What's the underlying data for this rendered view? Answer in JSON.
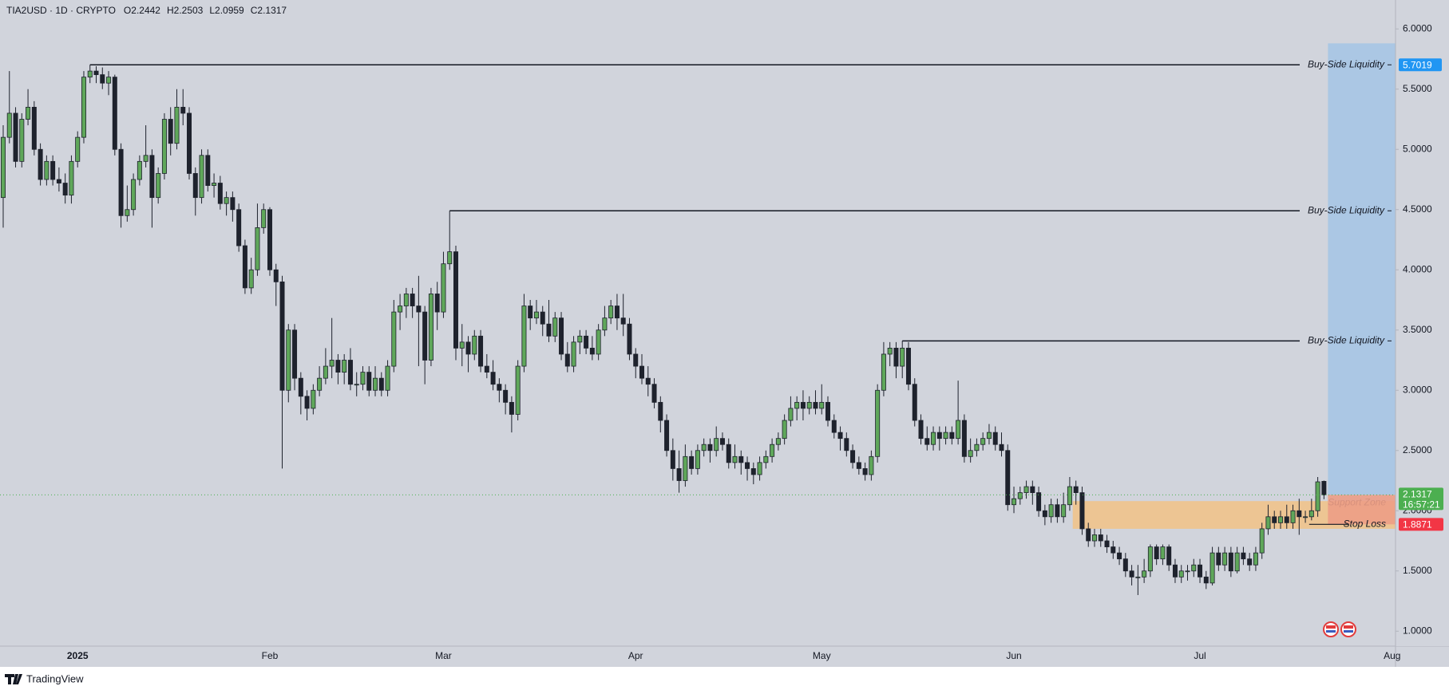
{
  "header": {
    "symbol": "TIA2USD · 1D · CRYPTO",
    "ohlc_prefixes": [
      "O",
      "H",
      "L",
      "C"
    ]
  },
  "chart_data": {
    "type": "candlestick",
    "categories": [
      null,
      null,
      null,
      null,
      null,
      null,
      null,
      null,
      null,
      null,
      null,
      null,
      "2025",
      null,
      null,
      null,
      null,
      null,
      null,
      null,
      null,
      null,
      null,
      null,
      null,
      null,
      null,
      null,
      null,
      null,
      null,
      null,
      null,
      null,
      null,
      null,
      null,
      null,
      null,
      null,
      null,
      null,
      null,
      "Feb",
      null,
      null,
      null,
      null,
      null,
      null,
      null,
      null,
      null,
      null,
      null,
      null,
      null,
      null,
      null,
      null,
      null,
      null,
      null,
      null,
      null,
      null,
      null,
      null,
      null,
      null,
      null,
      "Mar",
      null,
      null,
      null,
      null,
      null,
      null,
      null,
      null,
      null,
      null,
      null,
      null,
      null,
      null,
      null,
      null,
      null,
      null,
      null,
      null,
      null,
      null,
      null,
      null,
      null,
      null,
      null,
      null,
      null,
      null,
      "Apr",
      null,
      null,
      null,
      null,
      null,
      null,
      null,
      null,
      null,
      null,
      null,
      null,
      null,
      null,
      null,
      null,
      null,
      null,
      null,
      null,
      null,
      null,
      null,
      null,
      null,
      null,
      null,
      null,
      null,
      "May",
      null,
      null,
      null,
      null,
      null,
      null,
      null,
      null,
      null,
      null,
      null,
      null,
      null,
      null,
      null,
      null,
      null,
      null,
      null,
      null,
      null,
      null,
      null,
      null,
      null,
      null,
      null,
      null,
      null,
      null,
      "Jun",
      null,
      null,
      null,
      null,
      null,
      null,
      null,
      null,
      null,
      null,
      null,
      null,
      null,
      null,
      null,
      null,
      null,
      null,
      null,
      null,
      null,
      null,
      null,
      null,
      null,
      null,
      null,
      null,
      null,
      "Jul",
      null,
      null,
      null,
      null,
      null,
      null,
      null,
      null,
      null,
      null,
      null,
      null,
      null,
      null,
      null,
      null,
      null,
      null,
      null,
      null,
      null,
      null,
      null,
      null,
      null,
      null,
      null,
      null,
      null,
      null,
      "Aug"
    ],
    "open": [
      4.6,
      5.1,
      5.3,
      4.9,
      5.25,
      5.35,
      5.0,
      4.75,
      4.9,
      4.75,
      4.72,
      4.62,
      4.9,
      5.1,
      5.6,
      5.65,
      5.62,
      5.55,
      5.6,
      5.0,
      4.45,
      4.5,
      4.75,
      4.9,
      4.95,
      4.6,
      4.8,
      5.25,
      5.05,
      5.35,
      5.3,
      4.8,
      4.6,
      4.95,
      4.7,
      4.72,
      4.55,
      4.6,
      4.5,
      4.2,
      3.85,
      4.0,
      4.35,
      4.5,
      4.0,
      3.9,
      3.0,
      3.5,
      3.1,
      2.95,
      2.85,
      3.0,
      3.1,
      3.2,
      3.25,
      3.15,
      3.25,
      3.05,
      3.05,
      3.15,
      3.0,
      3.1,
      3.0,
      3.2,
      3.65,
      3.7,
      3.8,
      3.7,
      3.65,
      3.25,
      3.8,
      3.65,
      4.05,
      4.15,
      3.35,
      3.4,
      3.3,
      3.45,
      3.2,
      3.15,
      3.05,
      3.0,
      2.9,
      2.8,
      3.2,
      3.7,
      3.6,
      3.65,
      3.55,
      3.45,
      3.6,
      3.3,
      3.2,
      3.4,
      3.45,
      3.35,
      3.3,
      3.5,
      3.6,
      3.7,
      3.6,
      3.55,
      3.3,
      3.2,
      3.1,
      3.05,
      2.9,
      2.75,
      2.5,
      2.35,
      2.25,
      2.45,
      2.35,
      2.5,
      2.55,
      2.5,
      2.6,
      2.55,
      2.4,
      2.45,
      2.4,
      2.35,
      2.3,
      2.4,
      2.45,
      2.55,
      2.6,
      2.75,
      2.85,
      2.9,
      2.85,
      2.9,
      2.85,
      2.9,
      2.75,
      2.65,
      2.6,
      2.5,
      2.4,
      2.35,
      2.3,
      2.45,
      3.0,
      3.3,
      3.35,
      3.2,
      3.35,
      3.05,
      2.75,
      2.6,
      2.55,
      2.65,
      2.6,
      2.65,
      2.6,
      2.75,
      2.45,
      2.5,
      2.55,
      2.6,
      2.65,
      2.55,
      2.5,
      2.05,
      2.1,
      2.15,
      2.2,
      2.15,
      2.0,
      1.95,
      2.05,
      1.95,
      2.05,
      2.2,
      2.15,
      1.85,
      1.75,
      1.8,
      1.75,
      1.7,
      1.65,
      1.6,
      1.5,
      1.45,
      1.45,
      1.5,
      1.7,
      1.6,
      1.7,
      1.55,
      1.45,
      1.5,
      1.5,
      1.55,
      1.45,
      1.4,
      1.65,
      1.55,
      1.65,
      1.5,
      1.65,
      1.6,
      1.55,
      1.65,
      1.85,
      1.95,
      1.9,
      1.95,
      1.9,
      2.0,
      1.95,
      1.95,
      2.0,
      2.2442,
      null,
      null,
      null,
      null,
      null,
      null,
      null,
      null,
      null,
      null,
      null
    ],
    "high": [
      5.2,
      5.65,
      5.35,
      5.3,
      5.5,
      5.4,
      5.05,
      4.95,
      4.95,
      4.85,
      4.8,
      4.95,
      5.15,
      5.65,
      5.7019,
      5.69,
      5.68,
      5.65,
      5.62,
      5.05,
      4.7,
      4.8,
      4.95,
      5.2,
      5.0,
      4.85,
      5.3,
      5.35,
      5.5,
      5.5,
      5.35,
      4.85,
      5.0,
      5.0,
      4.8,
      4.78,
      4.65,
      4.65,
      4.55,
      4.25,
      4.1,
      4.55,
      4.55,
      4.52,
      4.05,
      3.95,
      3.55,
      3.55,
      3.15,
      3.0,
      3.05,
      3.2,
      3.35,
      3.6,
      3.3,
      3.3,
      3.35,
      3.15,
      3.2,
      3.2,
      3.2,
      3.15,
      3.25,
      3.75,
      3.8,
      3.85,
      3.85,
      3.95,
      3.7,
      3.85,
      3.9,
      4.15,
      4.49,
      4.2,
      3.55,
      3.45,
      3.5,
      3.5,
      3.3,
      3.25,
      3.1,
      3.05,
      2.95,
      3.25,
      3.8,
      3.75,
      3.75,
      3.7,
      3.75,
      3.65,
      3.65,
      3.4,
      3.45,
      3.5,
      3.5,
      3.45,
      3.55,
      3.7,
      3.75,
      3.8,
      3.8,
      3.6,
      3.35,
      3.3,
      3.2,
      3.1,
      2.95,
      2.8,
      2.6,
      2.5,
      2.55,
      2.5,
      2.55,
      2.6,
      2.6,
      2.7,
      2.65,
      2.6,
      2.55,
      2.5,
      2.45,
      2.4,
      2.45,
      2.5,
      2.6,
      2.65,
      2.8,
      2.95,
      2.95,
      3.0,
      2.95,
      3.0,
      3.05,
      2.95,
      2.8,
      2.7,
      2.65,
      2.55,
      2.45,
      2.4,
      2.5,
      3.05,
      3.4,
      3.4,
      3.4,
      3.41,
      3.4,
      3.1,
      2.8,
      2.7,
      2.7,
      2.7,
      2.7,
      2.7,
      3.08,
      2.8,
      2.6,
      2.6,
      2.65,
      2.72,
      2.7,
      2.65,
      2.55,
      2.2,
      2.2,
      2.25,
      2.25,
      2.2,
      2.05,
      2.1,
      2.1,
      2.15,
      2.28,
      2.25,
      2.2,
      1.9,
      1.85,
      1.85,
      1.8,
      1.75,
      1.7,
      1.65,
      1.55,
      1.55,
      1.6,
      1.72,
      1.72,
      1.72,
      1.72,
      1.6,
      1.55,
      1.55,
      1.6,
      1.6,
      1.5,
      1.7,
      1.7,
      1.7,
      1.7,
      1.7,
      1.7,
      1.65,
      1.7,
      1.9,
      2.05,
      2.0,
      2.0,
      2.05,
      2.05,
      2.1,
      2.0,
      2.1,
      2.28,
      2.2503,
      null,
      null,
      null,
      null,
      null,
      null,
      null,
      null,
      null,
      null,
      null
    ],
    "low": [
      4.35,
      5.05,
      4.85,
      4.85,
      5.2,
      4.95,
      4.7,
      4.7,
      4.7,
      4.65,
      4.55,
      4.55,
      4.85,
      5.05,
      5.55,
      5.55,
      5.5,
      5.45,
      4.95,
      4.35,
      4.4,
      4.45,
      4.7,
      4.85,
      4.35,
      4.55,
      4.75,
      4.95,
      5.0,
      5.2,
      4.75,
      4.45,
      4.55,
      4.65,
      4.6,
      4.5,
      4.45,
      4.4,
      4.15,
      3.8,
      3.8,
      3.95,
      4.3,
      3.95,
      3.7,
      2.35,
      2.9,
      3.0,
      2.8,
      2.75,
      2.8,
      2.95,
      3.05,
      3.1,
      3.05,
      3.05,
      3.0,
      2.95,
      3.0,
      2.95,
      2.95,
      2.95,
      2.95,
      3.15,
      3.5,
      3.6,
      3.6,
      3.2,
      3.05,
      3.2,
      3.5,
      3.6,
      4.0,
      3.25,
      3.2,
      3.15,
      3.25,
      3.15,
      3.1,
      3.0,
      2.9,
      2.8,
      2.65,
      2.75,
      3.15,
      3.5,
      3.55,
      3.45,
      3.4,
      3.4,
      3.25,
      3.15,
      3.15,
      3.3,
      3.3,
      3.25,
      3.25,
      3.45,
      3.55,
      3.5,
      3.45,
      3.25,
      3.1,
      3.05,
      2.95,
      2.85,
      2.65,
      2.45,
      2.25,
      2.15,
      2.2,
      2.3,
      2.3,
      2.45,
      2.4,
      2.45,
      2.5,
      2.35,
      2.35,
      2.3,
      2.25,
      2.22,
      2.25,
      2.35,
      2.4,
      2.5,
      2.55,
      2.7,
      2.75,
      2.75,
      2.8,
      2.8,
      2.8,
      2.7,
      2.6,
      2.5,
      2.45,
      2.35,
      2.3,
      2.25,
      2.25,
      2.4,
      2.95,
      3.2,
      3.1,
      3.1,
      3.0,
      2.7,
      2.55,
      2.5,
      2.5,
      2.5,
      2.55,
      2.55,
      2.55,
      2.4,
      2.4,
      2.45,
      2.5,
      2.55,
      2.5,
      2.45,
      2.0,
      1.98,
      2.05,
      2.1,
      2.05,
      1.95,
      1.88,
      1.9,
      1.9,
      1.9,
      2.0,
      2.05,
      1.8,
      1.7,
      1.7,
      1.7,
      1.65,
      1.6,
      1.55,
      1.45,
      1.38,
      1.3,
      1.4,
      1.45,
      1.55,
      1.55,
      1.5,
      1.4,
      1.4,
      1.42,
      1.45,
      1.4,
      1.35,
      1.38,
      1.5,
      1.5,
      1.45,
      1.48,
      1.55,
      1.5,
      1.5,
      1.6,
      1.8,
      1.85,
      1.85,
      1.85,
      1.85,
      1.8,
      1.9,
      1.92,
      1.95,
      2.0959,
      null,
      null,
      null,
      null,
      null,
      null,
      null,
      null,
      null,
      null,
      null
    ],
    "close": [
      5.1,
      5.3,
      4.9,
      5.25,
      5.35,
      5.0,
      4.75,
      4.9,
      4.75,
      4.72,
      4.62,
      4.9,
      5.1,
      5.6,
      5.65,
      5.62,
      5.55,
      5.6,
      5.0,
      4.45,
      4.5,
      4.75,
      4.9,
      4.95,
      4.6,
      4.8,
      5.25,
      5.05,
      5.35,
      5.3,
      4.8,
      4.6,
      4.95,
      4.7,
      4.72,
      4.55,
      4.6,
      4.5,
      4.2,
      3.85,
      4.0,
      4.35,
      4.5,
      4.0,
      3.9,
      3.0,
      3.5,
      3.1,
      2.95,
      2.85,
      3.0,
      3.1,
      3.2,
      3.25,
      3.15,
      3.25,
      3.05,
      3.05,
      3.15,
      3.0,
      3.1,
      3.0,
      3.2,
      3.65,
      3.7,
      3.8,
      3.7,
      3.65,
      3.25,
      3.8,
      3.65,
      4.05,
      4.15,
      3.35,
      3.4,
      3.3,
      3.45,
      3.2,
      3.15,
      3.05,
      3.0,
      2.9,
      2.8,
      3.2,
      3.7,
      3.6,
      3.65,
      3.55,
      3.45,
      3.6,
      3.3,
      3.2,
      3.4,
      3.45,
      3.35,
      3.3,
      3.5,
      3.6,
      3.7,
      3.6,
      3.55,
      3.3,
      3.2,
      3.1,
      3.05,
      2.9,
      2.75,
      2.5,
      2.35,
      2.25,
      2.45,
      2.35,
      2.5,
      2.55,
      2.5,
      2.6,
      2.55,
      2.4,
      2.45,
      2.4,
      2.35,
      2.3,
      2.4,
      2.45,
      2.55,
      2.6,
      2.75,
      2.85,
      2.9,
      2.85,
      2.9,
      2.85,
      2.9,
      2.75,
      2.65,
      2.6,
      2.5,
      2.4,
      2.35,
      2.3,
      2.45,
      3.0,
      3.3,
      3.35,
      3.2,
      3.35,
      3.05,
      2.75,
      2.6,
      2.55,
      2.65,
      2.6,
      2.65,
      2.6,
      2.75,
      2.45,
      2.5,
      2.55,
      2.6,
      2.65,
      2.55,
      2.5,
      2.05,
      2.1,
      2.15,
      2.2,
      2.15,
      2.0,
      1.95,
      2.05,
      1.95,
      2.05,
      2.2,
      2.15,
      1.85,
      1.75,
      1.8,
      1.75,
      1.7,
      1.65,
      1.6,
      1.5,
      1.45,
      1.45,
      1.5,
      1.7,
      1.6,
      1.7,
      1.55,
      1.45,
      1.5,
      1.5,
      1.55,
      1.45,
      1.4,
      1.65,
      1.55,
      1.65,
      1.5,
      1.65,
      1.6,
      1.55,
      1.65,
      1.85,
      1.95,
      1.9,
      1.95,
      1.9,
      2.0,
      1.95,
      1.95,
      2.0,
      2.24,
      2.1317,
      null,
      null,
      null,
      null,
      null,
      null,
      null,
      null,
      null,
      null,
      null
    ],
    "up_color": "#5fa75a",
    "down_color": "#1e222d",
    "ylim": [
      0.876,
      6.24
    ],
    "yticks": [
      {
        "value": 6,
        "label": "6.0000"
      },
      {
        "value": 5.5,
        "label": "5.5000"
      },
      {
        "value": 5,
        "label": "5.0000"
      },
      {
        "value": 4.5,
        "label": "4.5000"
      },
      {
        "value": 4,
        "label": "4.0000"
      },
      {
        "value": 3.5,
        "label": "3.5000"
      },
      {
        "value": 3,
        "label": "3.0000"
      },
      {
        "value": 2.5,
        "label": "2.5000"
      },
      {
        "value": 2,
        "label": "2.0000"
      },
      {
        "value": 1.5,
        "label": "1.5000"
      },
      {
        "value": 1,
        "label": "1.0000"
      }
    ],
    "grid": false,
    "levels": [
      {
        "label": "Buy-Side Liquidity",
        "value": 5.7019,
        "price_tag": true,
        "color": "#131722",
        "tag_color": "#2196f3"
      },
      {
        "label": "Buy-Side Liquidity",
        "value": 4.49,
        "price_tag": false,
        "color": "#131722"
      },
      {
        "label": "Buy-Side Liquidity",
        "value": 3.41,
        "price_tag": false,
        "color": "#131722"
      }
    ],
    "support_zone": {
      "label": "Support Zone",
      "top": 2.08,
      "bottom": 1.85,
      "start": 173,
      "color": "#f2c286"
    },
    "position": {
      "target": 5.88,
      "stop": 1.8871,
      "stop_label": "Stop Loss",
      "target_color": "#a6c5e4",
      "stop_color": "#ec9d86",
      "stop_tag_color": "#f23645",
      "price_color": "#4caf50"
    },
    "countdown": "16:57:21"
  },
  "footer": {
    "brand": "TradingView"
  }
}
